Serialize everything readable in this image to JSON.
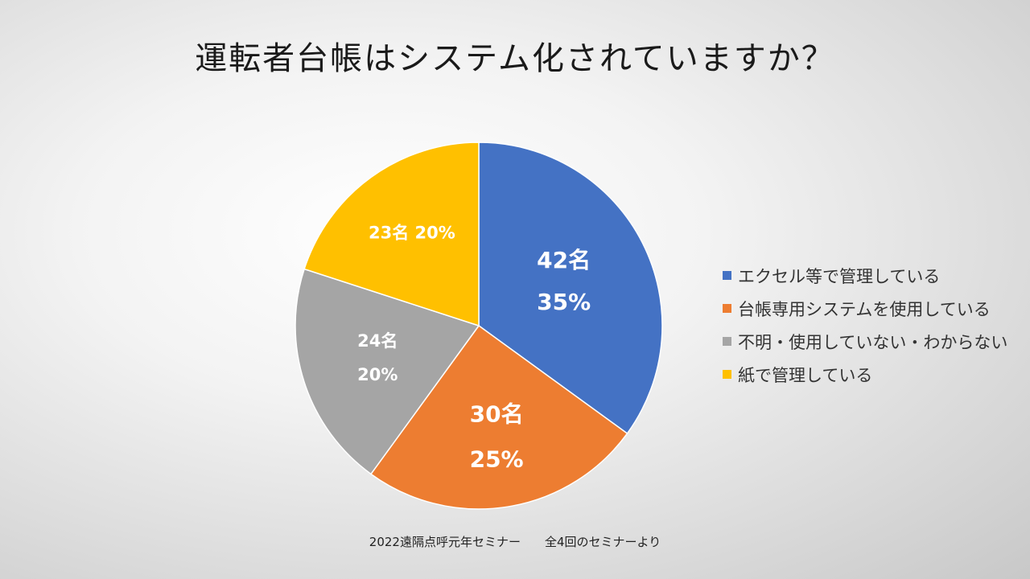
{
  "chart_data": {
    "type": "pie",
    "title": "運転者台帳はシステム化されていますか？",
    "series": [
      {
        "name": "エクセル等で管理している",
        "count": 42,
        "percent": 35,
        "count_label": "42名",
        "percent_label": "35%",
        "color": "#4472C4"
      },
      {
        "name": "台帳専用システムを使用している",
        "count": 30,
        "percent": 25,
        "count_label": "30名",
        "percent_label": "25%",
        "color": "#ED7D31"
      },
      {
        "name": "不明・使用していない・わからない",
        "count": 24,
        "percent": 20,
        "count_label": "24名",
        "percent_label": "20%",
        "color": "#A5A5A5"
      },
      {
        "name": "紙で管理している",
        "count": 23,
        "percent": 20,
        "count_label": "23名",
        "percent_label": "20%",
        "color": "#FFC000"
      }
    ],
    "legend_position": "right",
    "label_color": "#FFFFFF",
    "start": "top",
    "direction": "clockwise"
  },
  "footer": "2022遠隔点呼元年セミナー　　全4回のセミナーより"
}
